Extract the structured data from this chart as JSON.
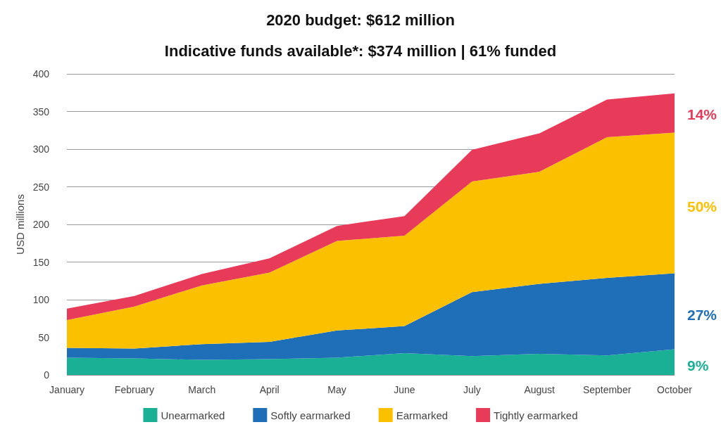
{
  "chart_data": {
    "type": "area",
    "title": "2020 budget: $612 million",
    "subtitle": "Indicative funds available*: $374 million | 61% funded",
    "ylabel": "USD millions",
    "categories": [
      "January",
      "February",
      "March",
      "April",
      "May",
      "June",
      "July",
      "August",
      "September",
      "October"
    ],
    "stacked": true,
    "series": [
      {
        "name": "Unearmarked",
        "color": "#19b095",
        "values": [
          23,
          22,
          20,
          21,
          23,
          29,
          25,
          28,
          26,
          34
        ]
      },
      {
        "name": "Softly earmarked",
        "color": "#1f6fb8",
        "values": [
          13,
          13,
          21,
          23,
          36,
          36,
          85,
          93,
          103,
          101
        ]
      },
      {
        "name": "Earmarked",
        "color": "#fbc000",
        "values": [
          37,
          56,
          78,
          92,
          119,
          120,
          147,
          149,
          187,
          187
        ]
      },
      {
        "name": "Tightly earmarked",
        "color": "#e83a59",
        "values": [
          15,
          14,
          15,
          19,
          20,
          26,
          42,
          51,
          50,
          52
        ]
      }
    ],
    "ylim": [
      0,
      400
    ],
    "yticks": [
      0,
      50,
      100,
      150,
      200,
      250,
      300,
      350,
      400
    ],
    "grid": "y",
    "legend": "bottom",
    "marker": "none",
    "annotations": [
      {
        "text": "9%",
        "x": "October",
        "y": 13
      },
      {
        "text": "27%",
        "x": "October",
        "y": 80
      },
      {
        "text": "50%",
        "x": "October",
        "y": 224
      },
      {
        "text": "14%",
        "x": "October",
        "y": 346
      }
    ]
  }
}
